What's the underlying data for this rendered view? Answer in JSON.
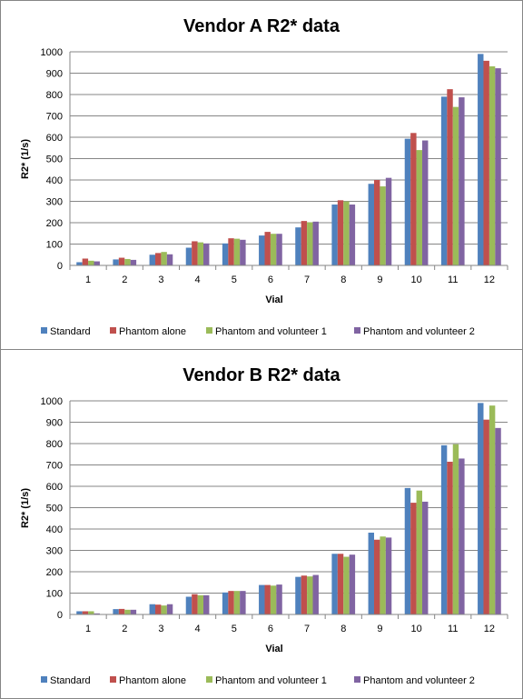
{
  "series_colors": [
    "#4F81BD",
    "#C0504D",
    "#9BBB59",
    "#8064A2"
  ],
  "chart_data": [
    {
      "type": "bar",
      "title": "Vendor A R2* data",
      "xlabel": "Vial",
      "ylabel": "R2* (1/s)",
      "ylim": [
        0,
        1000
      ],
      "yticks": [
        "0",
        "100",
        "200",
        "300",
        "400",
        "500",
        "600",
        "700",
        "800",
        "900",
        "1000"
      ],
      "grid": true,
      "legend_position": "bottom",
      "categories": [
        "1",
        "2",
        "3",
        "4",
        "5",
        "6",
        "7",
        "8",
        "9",
        "10",
        "11",
        "12"
      ],
      "series": [
        {
          "name": "Standard",
          "values": [
            15,
            28,
            50,
            83,
            103,
            140,
            178,
            285,
            382,
            593,
            790,
            990
          ]
        },
        {
          "name": "Phantom alone",
          "values": [
            32,
            36,
            58,
            113,
            127,
            157,
            208,
            305,
            400,
            620,
            825,
            958
          ]
        },
        {
          "name": "Phantom and volunteer 1",
          "values": [
            22,
            30,
            63,
            108,
            125,
            148,
            202,
            300,
            370,
            540,
            742,
            932
          ]
        },
        {
          "name": "Phantom and volunteer 2",
          "values": [
            19,
            26,
            52,
            103,
            120,
            148,
            205,
            285,
            410,
            585,
            787,
            923
          ]
        }
      ]
    },
    {
      "type": "bar",
      "title": "Vendor B R2* data",
      "xlabel": "Vial",
      "ylabel": "R2* (1/s)",
      "ylim": [
        0,
        1000
      ],
      "yticks": [
        "0",
        "100",
        "200",
        "300",
        "400",
        "500",
        "600",
        "700",
        "800",
        "900",
        "1000"
      ],
      "grid": true,
      "legend_position": "bottom",
      "categories": [
        "1",
        "2",
        "3",
        "4",
        "5",
        "6",
        "7",
        "8",
        "9",
        "10",
        "11",
        "12"
      ],
      "series": [
        {
          "name": "Standard",
          "values": [
            15,
            25,
            48,
            83,
            103,
            138,
            176,
            284,
            383,
            592,
            792,
            990
          ]
        },
        {
          "name": "Phantom alone",
          "values": [
            15,
            26,
            46,
            95,
            110,
            138,
            182,
            284,
            350,
            523,
            715,
            912
          ]
        },
        {
          "name": "Phantom and volunteer 1",
          "values": [
            15,
            22,
            42,
            90,
            110,
            135,
            178,
            270,
            365,
            580,
            797,
            978
          ]
        },
        {
          "name": "Phantom and volunteer 2",
          "values": [
            5,
            22,
            48,
            90,
            110,
            140,
            185,
            280,
            360,
            528,
            730,
            873
          ]
        }
      ]
    }
  ]
}
